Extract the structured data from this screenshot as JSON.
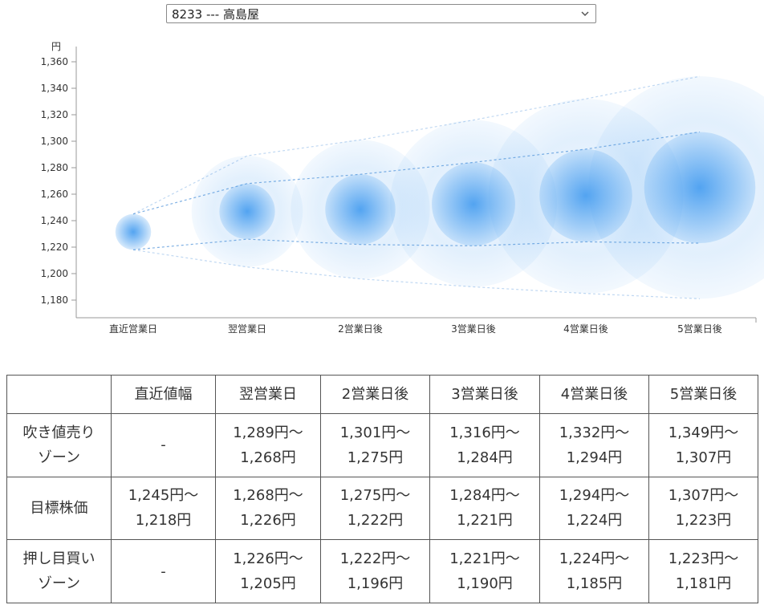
{
  "stock_selector": {
    "value": "8233 --- 高島屋"
  },
  "chart_data": {
    "type": "bubble-range",
    "unit": "円",
    "ylim": [
      1170,
      1365
    ],
    "yticks": [
      1180,
      1200,
      1220,
      1240,
      1260,
      1280,
      1300,
      1320,
      1340,
      1360
    ],
    "categories": [
      "直近営業日",
      "翌営業日",
      "2営業日後",
      "3営業日後",
      "4営業日後",
      "5営業日後"
    ],
    "center": [
      1232,
      1247,
      1249,
      1253,
      1259,
      1265
    ],
    "target_range": {
      "upper": [
        1245,
        1268,
        1275,
        1284,
        1294,
        1307
      ],
      "lower": [
        1218,
        1226,
        1222,
        1221,
        1224,
        1223
      ]
    },
    "outer_range": {
      "upper": [
        1245,
        1289,
        1301,
        1316,
        1332,
        1349
      ],
      "lower": [
        1218,
        1205,
        1196,
        1190,
        1185,
        1181
      ]
    },
    "bubble_color": "#4a9ff0",
    "line_color": "#4a90d9"
  },
  "table": {
    "headers": [
      "",
      "直近値幅",
      "翌営業日",
      "2営業日後",
      "3営業日後",
      "4営業日後",
      "5営業日後"
    ],
    "rows": [
      {
        "label": [
          "吹き値売り",
          "ゾーン"
        ],
        "cells": [
          [
            "-"
          ],
          [
            "1,289円～",
            "1,268円"
          ],
          [
            "1,301円～",
            "1,275円"
          ],
          [
            "1,316円～",
            "1,284円"
          ],
          [
            "1,332円～",
            "1,294円"
          ],
          [
            "1,349円～",
            "1,307円"
          ]
        ]
      },
      {
        "label": [
          "目標株価"
        ],
        "cells": [
          [
            "1,245円～",
            "1,218円"
          ],
          [
            "1,268円～",
            "1,226円"
          ],
          [
            "1,275円～",
            "1,222円"
          ],
          [
            "1,284円～",
            "1,221円"
          ],
          [
            "1,294円～",
            "1,224円"
          ],
          [
            "1,307円～",
            "1,223円"
          ]
        ]
      },
      {
        "label": [
          "押し目買い",
          "ゾーン"
        ],
        "cells": [
          [
            "-"
          ],
          [
            "1,226円～",
            "1,205円"
          ],
          [
            "1,222円～",
            "1,196円"
          ],
          [
            "1,221円～",
            "1,190円"
          ],
          [
            "1,224円～",
            "1,185円"
          ],
          [
            "1,223円～",
            "1,181円"
          ]
        ]
      }
    ]
  }
}
